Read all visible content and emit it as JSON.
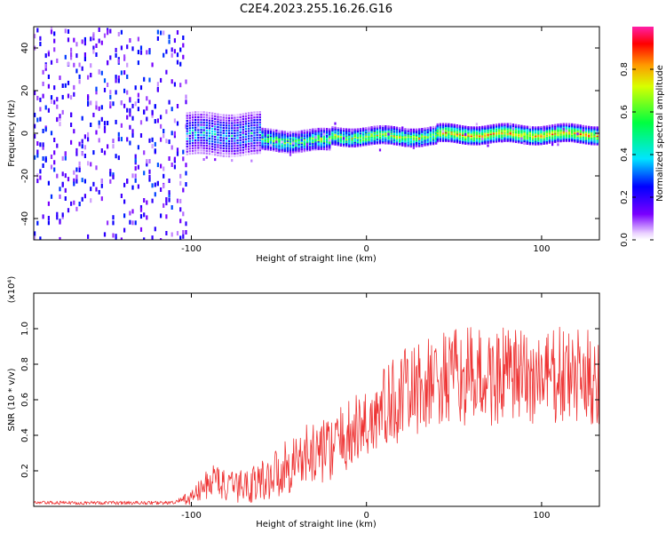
{
  "title": "C2E4.2023.255.16.26.G16",
  "chart_data": [
    {
      "type": "heatmap",
      "xlabel": "Height of straight line (km)",
      "ylabel": "Frequency (Hz)",
      "xlim": [
        -190,
        133
      ],
      "ylim": [
        -50,
        50
      ],
      "xticks": [
        -100,
        0,
        100
      ],
      "yticks": [
        -40,
        -20,
        0,
        20,
        40
      ],
      "xticklabels": [
        "-100",
        "0",
        "100"
      ],
      "yticklabels": [
        "-40",
        "-20",
        "0",
        "20",
        "40"
      ],
      "colorbar": {
        "label": "Normalized spectral amplitude",
        "range": [
          0,
          1
        ],
        "ticks": [
          0.0,
          0.2,
          0.4,
          0.6,
          0.8
        ],
        "ticklabels": [
          "0.0",
          "0.2",
          "0.4",
          "0.6",
          "0.8"
        ],
        "colormap": "gist_ncar_like"
      },
      "regions": [
        {
          "x_range": [
            -190,
            -103
          ],
          "freq_range": [
            -50,
            50
          ],
          "character": "broadband scatter",
          "amplitude": [
            0.05,
            0.3
          ]
        },
        {
          "x_range": [
            -103,
            -60
          ],
          "freq_center": 0,
          "freq_halfwidth": 6,
          "amplitude": [
            0.2,
            0.5
          ]
        },
        {
          "x_range": [
            -60,
            -20
          ],
          "freq_center": -3,
          "freq_halfwidth": 3,
          "amplitude": [
            0.3,
            0.8
          ]
        },
        {
          "x_range": [
            -20,
            40
          ],
          "freq_center": -1,
          "freq_halfwidth": 2.5,
          "amplitude": [
            0.4,
            0.9
          ]
        },
        {
          "x_range": [
            40,
            133
          ],
          "freq_center": 0,
          "freq_halfwidth": 2.5,
          "amplitude": [
            0.6,
            0.95
          ]
        }
      ]
    },
    {
      "type": "line",
      "xlabel": "Height of straight line (km)",
      "ylabel": "SNR (10 * v/v)",
      "yscale_label": "(x10⁴)",
      "xlim": [
        -190,
        133
      ],
      "ylim": [
        0,
        1.2
      ],
      "xticks": [
        -100,
        0,
        100
      ],
      "yticks": [
        0.2,
        0.4,
        0.6,
        0.8,
        1.0
      ],
      "xticklabels": [
        "-100",
        "0",
        "100"
      ],
      "yticklabels": [
        "0.2",
        "0.4",
        "0.6",
        "0.8",
        "1.0"
      ],
      "series": [
        {
          "color": "#ee3333",
          "x": [
            -190,
            -150,
            -110,
            -100,
            -90,
            -85,
            -80,
            -70,
            -60,
            -50,
            -40,
            -30,
            -20,
            -10,
            0,
            10,
            20,
            30,
            40,
            50,
            60,
            70,
            80,
            90,
            100,
            110,
            120,
            133
          ],
          "y": [
            0.02,
            0.02,
            0.02,
            0.05,
            0.13,
            0.16,
            0.1,
            0.12,
            0.14,
            0.2,
            0.26,
            0.3,
            0.33,
            0.4,
            0.46,
            0.55,
            0.62,
            0.66,
            0.7,
            0.72,
            0.73,
            0.72,
            0.73,
            0.72,
            0.72,
            0.73,
            0.72,
            0.72
          ],
          "noise_amplitude": [
            0.01,
            0.01,
            0.01,
            0.04,
            0.09,
            0.11,
            0.08,
            0.1,
            0.12,
            0.15,
            0.17,
            0.18,
            0.18,
            0.2,
            0.22,
            0.24,
            0.26,
            0.26,
            0.27,
            0.28,
            0.28,
            0.28,
            0.28,
            0.28,
            0.28,
            0.28,
            0.28,
            0.28
          ]
        }
      ]
    }
  ]
}
